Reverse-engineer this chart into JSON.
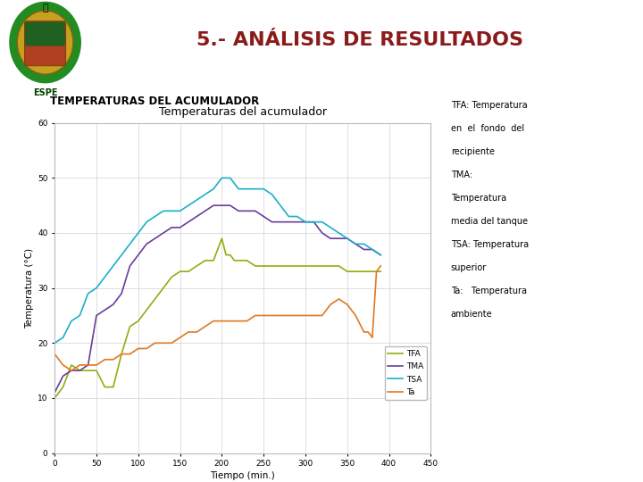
{
  "title": "Temperaturas del acumulador",
  "header_title": "5.- ANÁLISIS DE RESULTADOS",
  "subtitle": "TEMPERATURAS DEL ACUMULADOR",
  "xlabel": "Tiempo (min.)",
  "ylabel": "Temperatura (°C)",
  "xlim": [
    0,
    450
  ],
  "ylim": [
    0,
    60
  ],
  "xticks": [
    0,
    50,
    100,
    150,
    200,
    250,
    300,
    350,
    400,
    450
  ],
  "yticks": [
    0,
    10,
    20,
    30,
    40,
    50,
    60
  ],
  "legend_labels": [
    "TFA",
    "TMA",
    "TSA",
    "Ta"
  ],
  "legend_colors": [
    "#8db010",
    "#6a3d9a",
    "#1ab0c8",
    "#e07820"
  ],
  "annotation_lines": [
    "TFA: Temperatura",
    "en  el  fondo  del",
    "recipiente",
    "TMA:",
    "Temperatura",
    "media del tanque",
    "TSA: Temperatura",
    "superior",
    "Ta:   Temperatura",
    "ambiente"
  ],
  "bg_color": "#ffffff",
  "plot_bg_color": "#ffffff",
  "header_color": "#8B1A1A",
  "subtitle_color": "#000000",
  "TFA_x": [
    0,
    10,
    20,
    30,
    40,
    50,
    60,
    70,
    80,
    90,
    100,
    110,
    120,
    130,
    140,
    150,
    160,
    170,
    180,
    190,
    200,
    205,
    210,
    215,
    220,
    225,
    230,
    240,
    250,
    260,
    270,
    280,
    290,
    300,
    310,
    320,
    330,
    340,
    350,
    360,
    370,
    380,
    390
  ],
  "TFA_y": [
    10,
    12,
    16,
    15,
    15,
    15,
    12,
    12,
    18,
    23,
    24,
    26,
    28,
    30,
    32,
    33,
    33,
    34,
    35,
    35,
    39,
    36,
    36,
    35,
    35,
    35,
    35,
    34,
    34,
    34,
    34,
    34,
    34,
    34,
    34,
    34,
    34,
    34,
    33,
    33,
    33,
    33,
    33
  ],
  "TMA_x": [
    0,
    10,
    20,
    30,
    40,
    50,
    60,
    70,
    80,
    90,
    100,
    110,
    120,
    130,
    140,
    150,
    160,
    170,
    180,
    190,
    200,
    210,
    220,
    230,
    240,
    250,
    260,
    270,
    280,
    290,
    300,
    310,
    320,
    330,
    340,
    350,
    360,
    370,
    380,
    390
  ],
  "TMA_y": [
    11,
    14,
    15,
    15,
    16,
    25,
    26,
    27,
    29,
    34,
    36,
    38,
    39,
    40,
    41,
    41,
    42,
    43,
    44,
    45,
    45,
    45,
    44,
    44,
    44,
    43,
    42,
    42,
    42,
    42,
    42,
    42,
    40,
    39,
    39,
    39,
    38,
    37,
    37,
    36
  ],
  "TSA_x": [
    0,
    10,
    20,
    30,
    40,
    50,
    60,
    70,
    80,
    90,
    100,
    110,
    120,
    130,
    140,
    150,
    160,
    170,
    180,
    190,
    200,
    210,
    220,
    230,
    240,
    250,
    260,
    270,
    280,
    290,
    300,
    310,
    320,
    330,
    340,
    350,
    360,
    370,
    380,
    390
  ],
  "TSA_y": [
    20,
    21,
    24,
    25,
    29,
    30,
    32,
    34,
    36,
    38,
    40,
    42,
    43,
    44,
    44,
    44,
    45,
    46,
    47,
    48,
    50,
    50,
    48,
    48,
    48,
    48,
    47,
    45,
    43,
    43,
    42,
    42,
    42,
    41,
    40,
    39,
    38,
    38,
    37,
    36
  ],
  "Ta_x": [
    0,
    10,
    20,
    30,
    40,
    50,
    60,
    70,
    80,
    90,
    100,
    110,
    120,
    130,
    140,
    150,
    160,
    170,
    180,
    190,
    200,
    210,
    220,
    230,
    240,
    250,
    260,
    270,
    280,
    290,
    300,
    310,
    320,
    330,
    340,
    350,
    360,
    370,
    375,
    380,
    385,
    390
  ],
  "Ta_y": [
    18,
    16,
    15,
    16,
    16,
    16,
    17,
    17,
    18,
    18,
    19,
    19,
    20,
    20,
    20,
    21,
    22,
    22,
    23,
    24,
    24,
    24,
    24,
    24,
    25,
    25,
    25,
    25,
    25,
    25,
    25,
    25,
    25,
    27,
    28,
    27,
    25,
    22,
    22,
    21,
    33,
    34
  ],
  "header_line_color": "#222222",
  "chart_border_color": "#bbbbbb",
  "grid_color": "#d8d8d8"
}
